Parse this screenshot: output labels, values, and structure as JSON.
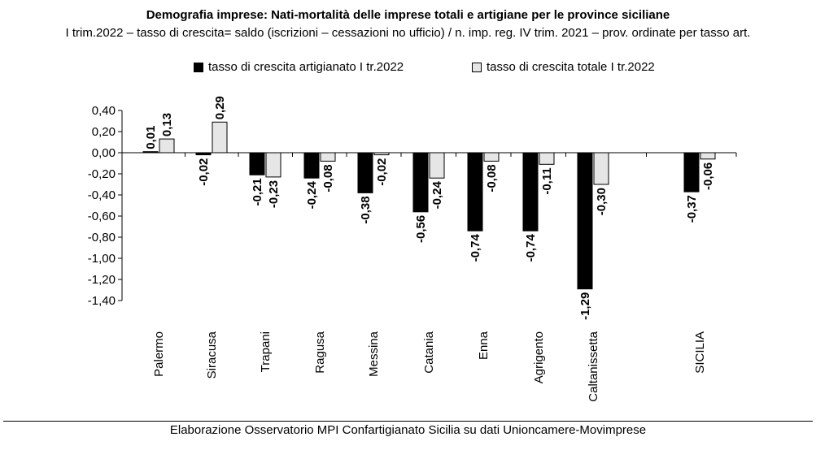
{
  "chart_data": {
    "type": "bar",
    "title": "Demografia imprese: Nati-mortalità delle imprese totali e artigiane per le province siciliane",
    "subtitle": "I trim.2022 – tasso di crescita= saldo (iscrizioni – cessazioni no ufficio) / n. imp. reg. IV trim. 2021 – prov. ordinate per tasso art.",
    "categories": [
      "Palermo",
      "Siracusa",
      "Trapani",
      "Ragusa",
      "Messina",
      "Catania",
      "Enna",
      "Agrigento",
      "Caltanissetta",
      "SICILIA"
    ],
    "series": [
      {
        "name": "tasso di crescita artigianato I tr.2022",
        "color": "#000000",
        "values": [
          0.01,
          -0.02,
          -0.21,
          -0.24,
          -0.38,
          -0.56,
          -0.74,
          -0.74,
          -1.29,
          -0.37
        ],
        "labels": [
          "0,01",
          "-0,02",
          "-0,21",
          "-0,24",
          "-0,38",
          "-0,56",
          "-0,74",
          "-0,74",
          "-1,29",
          "-0,37"
        ]
      },
      {
        "name": "tasso di crescita totale I tr.2022",
        "color": "#e6e6e6",
        "values": [
          0.13,
          0.29,
          -0.23,
          -0.08,
          -0.02,
          -0.24,
          -0.08,
          -0.11,
          -0.3,
          -0.06
        ],
        "labels": [
          "0,13",
          "0,29",
          "-0,23",
          "-0,08",
          "-0,02",
          "-0,24",
          "-0,08",
          "-0,11",
          "-0,30",
          "-0,06"
        ]
      }
    ],
    "yticks": [
      0.4,
      0.2,
      0.0,
      -0.2,
      -0.4,
      -0.6,
      -0.8,
      -1.0,
      -1.2,
      -1.4
    ],
    "ytick_labels": [
      "0,40",
      "0,20",
      "0,00",
      "-0,20",
      "-0,40",
      "-0,60",
      "-0,80",
      "-1,00",
      "-1,20",
      "-1,40"
    ],
    "ylim": [
      -1.4,
      0.4
    ],
    "legend_position": "top",
    "grid": false
  },
  "source": "Elaborazione Osservatorio MPI Confartigianato Sicilia su dati Unioncamere-Movimprese"
}
